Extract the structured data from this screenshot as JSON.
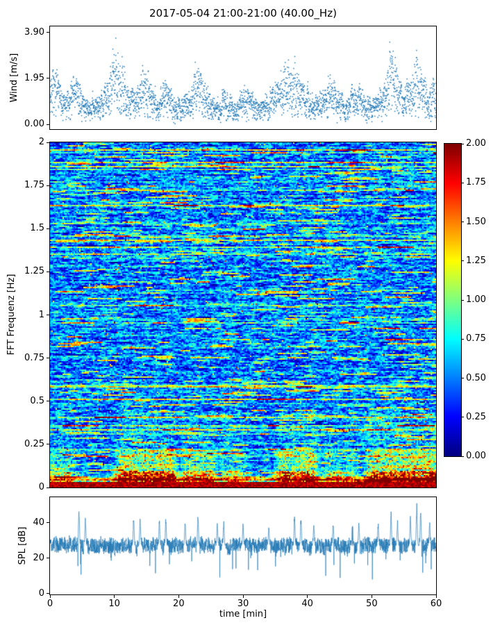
{
  "figure": {
    "title": "2017-05-04 21:00-21:00 (40.00_Hz)",
    "background": "#ffffff"
  },
  "x_axis": {
    "label": "time [min]",
    "ticks": [
      0,
      10,
      20,
      30,
      40,
      50,
      60
    ],
    "lim": [
      0,
      60
    ]
  },
  "chart_data": [
    {
      "id": "wind",
      "type": "scatter",
      "ylabel": "Wind [m/s]",
      "ylim": [
        0,
        3.9
      ],
      "xlim": [
        0,
        60
      ],
      "color": "#1f77b4",
      "yticks": [
        {
          "v": 0,
          "label": "0.00"
        },
        {
          "v": 1.95,
          "label": "1.95"
        },
        {
          "v": 3.9,
          "label": "3.90"
        }
      ],
      "envelope": [
        [
          0,
          2.3
        ],
        [
          1,
          2.6
        ],
        [
          2,
          1.2
        ],
        [
          3,
          1.8
        ],
        [
          4,
          2.4
        ],
        [
          5,
          1.5
        ],
        [
          6,
          1.0
        ],
        [
          7,
          1.3
        ],
        [
          8,
          1.6
        ],
        [
          9,
          2.0
        ],
        [
          10,
          3.9
        ],
        [
          11,
          2.8
        ],
        [
          12,
          2.4
        ],
        [
          13,
          1.5
        ],
        [
          14,
          2.2
        ],
        [
          15,
          2.6
        ],
        [
          16,
          1.8
        ],
        [
          17,
          1.4
        ],
        [
          18,
          2.1
        ],
        [
          19,
          1.5
        ],
        [
          20,
          1.2
        ],
        [
          21,
          1.5
        ],
        [
          22,
          1.9
        ],
        [
          23,
          2.8
        ],
        [
          24,
          2.2
        ],
        [
          25,
          1.5
        ],
        [
          26,
          1.1
        ],
        [
          27,
          1.6
        ],
        [
          28,
          1.3
        ],
        [
          29,
          1.0
        ],
        [
          30,
          2.0
        ],
        [
          31,
          1.8
        ],
        [
          32,
          1.3
        ],
        [
          33,
          1.1
        ],
        [
          34,
          1.5
        ],
        [
          35,
          1.9
        ],
        [
          36,
          2.4
        ],
        [
          37,
          3.0
        ],
        [
          38,
          2.9
        ],
        [
          39,
          2.3
        ],
        [
          40,
          1.8
        ],
        [
          41,
          1.2
        ],
        [
          42,
          1.5
        ],
        [
          43,
          1.9
        ],
        [
          44,
          2.2
        ],
        [
          45,
          1.4
        ],
        [
          46,
          1.1
        ],
        [
          47,
          1.6
        ],
        [
          48,
          2.0
        ],
        [
          49,
          1.4
        ],
        [
          50,
          1.1
        ],
        [
          51,
          1.5
        ],
        [
          52,
          2.2
        ],
        [
          53,
          3.6
        ],
        [
          54,
          2.6
        ],
        [
          55,
          1.6
        ],
        [
          56,
          2.4
        ],
        [
          57,
          3.3
        ],
        [
          58,
          2.2
        ],
        [
          59,
          1.6
        ],
        [
          60,
          2.4
        ]
      ]
    },
    {
      "id": "spectrogram",
      "type": "heatmap",
      "ylabel": "FFT Frequenz [Hz]",
      "ylim": [
        0,
        2
      ],
      "xlim": [
        0,
        60
      ],
      "colormap": "jet",
      "vmin": 0,
      "vmax": 2,
      "yticks": [
        {
          "v": 0,
          "label": "0"
        },
        {
          "v": 0.25,
          "label": "0.25"
        },
        {
          "v": 0.5,
          "label": "0.5"
        },
        {
          "v": 0.75,
          "label": "0.75"
        },
        {
          "v": 1,
          "label": "1"
        },
        {
          "v": 1.25,
          "label": "1.25"
        },
        {
          "v": 1.5,
          "label": "1.5"
        },
        {
          "v": 1.75,
          "label": "1.75"
        },
        {
          "v": 2,
          "label": "2"
        }
      ],
      "background": {
        "mean": 0.48,
        "streak_row_fraction": 0.1,
        "streak_boost": 0.55
      },
      "bottom_band": {
        "freq_max": 0.03,
        "value": 1.92
      },
      "low_freq_events": [
        {
          "t_start": 0,
          "t_end": 3,
          "strength": 0.5
        },
        {
          "t_start": 11,
          "t_end": 19,
          "strength": 1.0
        },
        {
          "t_start": 21,
          "t_end": 25,
          "strength": 0.7
        },
        {
          "t_start": 27,
          "t_end": 30,
          "strength": 0.4
        },
        {
          "t_start": 36,
          "t_end": 41,
          "strength": 0.9
        },
        {
          "t_start": 43,
          "t_end": 47,
          "strength": 0.45
        },
        {
          "t_start": 50,
          "t_end": 60,
          "strength": 1.0
        }
      ],
      "colorbar": {
        "ticks": [
          {
            "v": 0,
            "label": "0.00"
          },
          {
            "v": 0.25,
            "label": "0.25"
          },
          {
            "v": 0.5,
            "label": "0.50"
          },
          {
            "v": 0.75,
            "label": "0.75"
          },
          {
            "v": 1,
            "label": "1.00"
          },
          {
            "v": 1.25,
            "label": "1.25"
          },
          {
            "v": 1.5,
            "label": "1.50"
          },
          {
            "v": 1.75,
            "label": "1.75"
          },
          {
            "v": 2,
            "label": "2.00"
          }
        ]
      }
    },
    {
      "id": "spl",
      "type": "line",
      "ylabel": "SPL [dB]",
      "ylim": [
        0,
        55
      ],
      "xlim": [
        0,
        60
      ],
      "color": "#1f77b4",
      "yticks": [
        {
          "v": 0,
          "label": "0"
        },
        {
          "v": 20,
          "label": "20"
        },
        {
          "v": 40,
          "label": "40"
        }
      ],
      "baseline": 27,
      "noise_std": 4.5,
      "spikes": [
        [
          4.5,
          50
        ],
        [
          5.5,
          44
        ],
        [
          13,
          45
        ],
        [
          14,
          43
        ],
        [
          17,
          42
        ],
        [
          18,
          44
        ],
        [
          21,
          41
        ],
        [
          23,
          45
        ],
        [
          26,
          40
        ],
        [
          27,
          41
        ],
        [
          30,
          40
        ],
        [
          34,
          39
        ],
        [
          38,
          46
        ],
        [
          39,
          43
        ],
        [
          41,
          40
        ],
        [
          44,
          41
        ],
        [
          47,
          39
        ],
        [
          48,
          41
        ],
        [
          51,
          40
        ],
        [
          53,
          47
        ],
        [
          54,
          42
        ],
        [
          56,
          44
        ],
        [
          57,
          52
        ],
        [
          57.6,
          49
        ],
        [
          59,
          41
        ]
      ]
    }
  ],
  "render": {
    "seed": 7,
    "wind_points": 3000,
    "spl_points": 2600,
    "heat_cols": 278,
    "heat_rows": 249
  }
}
